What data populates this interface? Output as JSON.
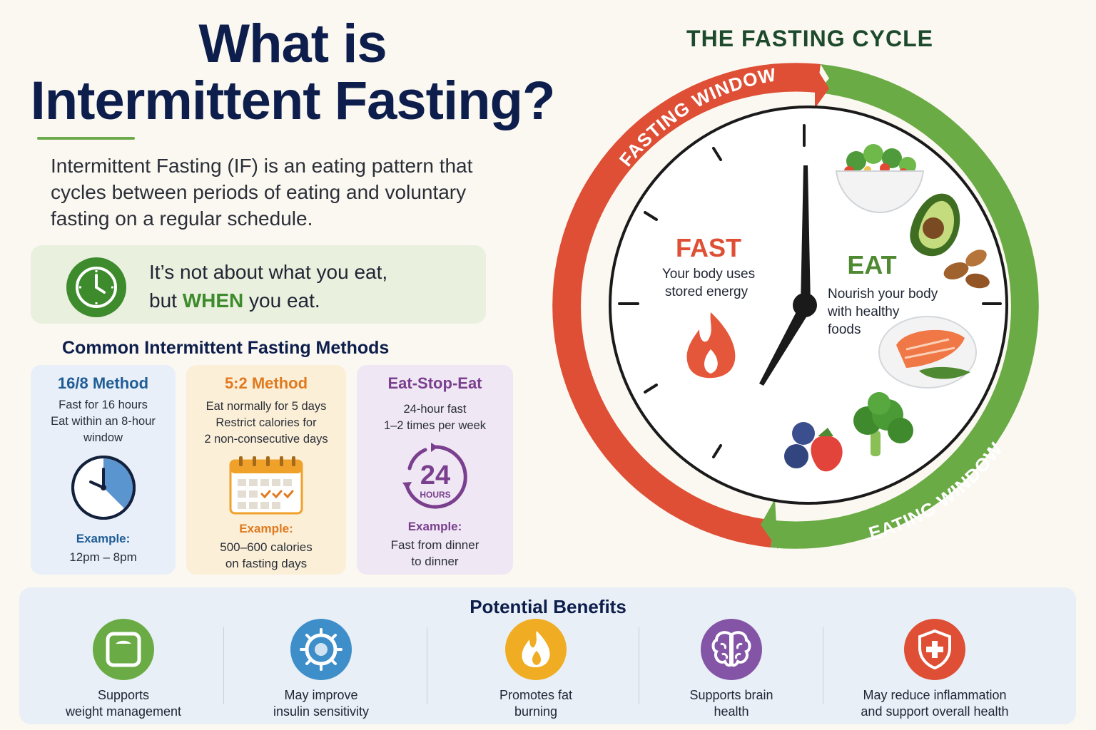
{
  "title": {
    "line1": "What is",
    "line2": "Intermittent Fasting?"
  },
  "intro": "Intermittent Fasting (IF) is an eating pattern that cycles between periods of eating and voluntary fasting on a regular schedule.",
  "callout": {
    "line1": "It’s not about what you eat,",
    "pre": "but ",
    "emph": "WHEN",
    "post": " you eat.",
    "icon": "clock-icon"
  },
  "methods": {
    "heading": "Common Intermittent Fasting Methods",
    "cards": [
      {
        "title": "16/8 Method",
        "lines": [
          "Fast for 16 hours",
          "Eat within an 8-hour",
          "window"
        ],
        "example_label": "Example:",
        "example_lines": [
          "12pm – 8pm"
        ],
        "icon": "clock-icon",
        "color": "#1f5d96"
      },
      {
        "title": "5:2 Method",
        "lines": [
          "Eat normally for 5 days",
          "Restrict calories for",
          "2 non-consecutive days"
        ],
        "example_label": "Example:",
        "example_lines": [
          "500–600 calories",
          "on fasting days"
        ],
        "icon": "calendar-icon",
        "color": "#e07a1f"
      },
      {
        "title": "Eat-Stop-Eat",
        "lines": [
          "24-hour fast",
          "1–2 times per week"
        ],
        "example_label": "Example:",
        "example_lines": [
          "Fast from dinner",
          "to dinner"
        ],
        "icon": "24-hours-icon",
        "icon_number": "24",
        "icon_label": "HOURS",
        "color": "#7a3f8e"
      }
    ]
  },
  "cycle": {
    "title": "THE FASTING CYCLE",
    "fasting_window": "FASTING WINDOW",
    "eating_window": "EATING WINDOW",
    "fast_label": "FAST",
    "fast_desc": [
      "Your body uses",
      "stored energy"
    ],
    "eat_label": "EAT",
    "eat_desc": [
      "Nourish your body",
      "with healthy",
      "foods"
    ],
    "fast_color": "#de4f35",
    "eat_color": "#6aab45"
  },
  "benefits": {
    "heading": "Potential Benefits",
    "items": [
      {
        "lines": [
          "Supports",
          "weight management"
        ],
        "icon": "scale-icon",
        "color": "#6aab45"
      },
      {
        "lines": [
          "May improve",
          "insulin sensitivity"
        ],
        "icon": "cell-icon",
        "color": "#3d8ec9"
      },
      {
        "lines": [
          "Promotes fat",
          "burning"
        ],
        "icon": "flame-icon",
        "color": "#f0ad23"
      },
      {
        "lines": [
          "Supports brain",
          "health"
        ],
        "icon": "brain-icon",
        "color": "#8455a6"
      },
      {
        "lines": [
          "May reduce inflammation",
          "and support overall health"
        ],
        "icon": "shield-icon",
        "color": "#de4f35"
      }
    ]
  }
}
